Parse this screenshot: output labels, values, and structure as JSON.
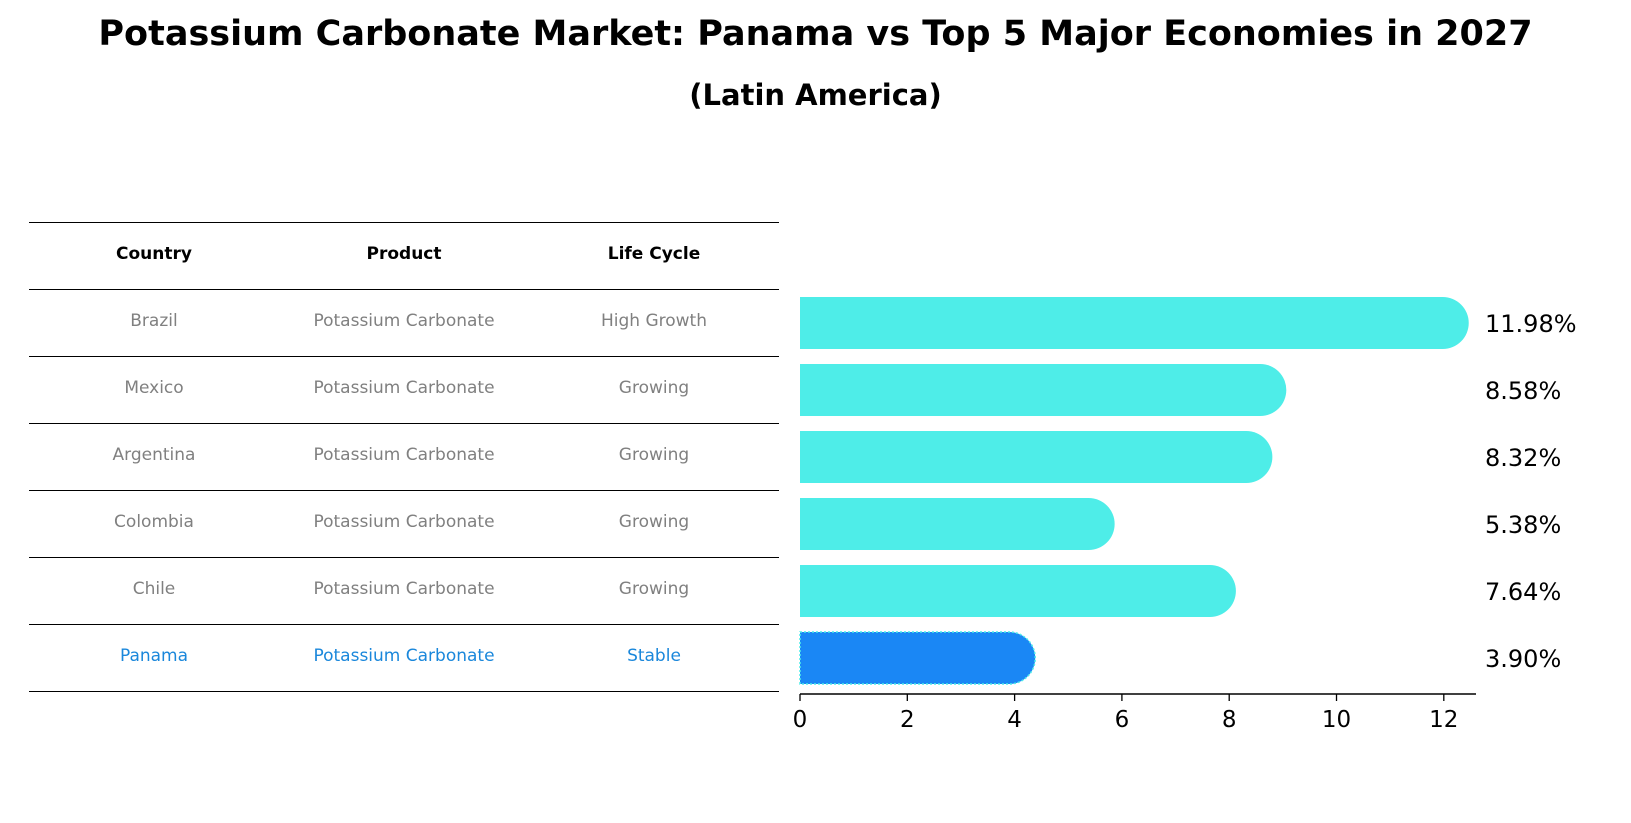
{
  "title": "Potassium Carbonate Market: Panama vs Top 5 Major Economies in 2027",
  "subtitle": "(Latin America)",
  "table": {
    "headers": [
      "Country",
      "Product",
      "Life Cycle"
    ],
    "rows": [
      {
        "country": "Brazil",
        "product": "Potassium Carbonate",
        "life_cycle": "High Growth",
        "highlight": false
      },
      {
        "country": "Mexico",
        "product": "Potassium Carbonate",
        "life_cycle": "Growing",
        "highlight": false
      },
      {
        "country": "Argentina",
        "product": "Potassium Carbonate",
        "life_cycle": "Growing",
        "highlight": false
      },
      {
        "country": "Colombia",
        "product": "Potassium Carbonate",
        "life_cycle": "Growing",
        "highlight": false
      },
      {
        "country": "Chile",
        "product": "Potassium Carbonate",
        "life_cycle": "Growing",
        "highlight": false
      },
      {
        "country": "Panama",
        "product": "Potassium Carbonate",
        "life_cycle": "Stable",
        "highlight": true
      }
    ]
  },
  "colors": {
    "bar": "#4eede8",
    "highlight_bar": "#1a87f5",
    "highlight_text": "#1a87db",
    "row_text": "#808080"
  },
  "chart_data": {
    "type": "bar",
    "orientation": "horizontal",
    "categories": [
      "Brazil",
      "Mexico",
      "Argentina",
      "Colombia",
      "Chile",
      "Panama"
    ],
    "values": [
      11.98,
      8.58,
      8.32,
      5.38,
      7.64,
      3.9
    ],
    "value_labels": [
      "11.98%",
      "8.58%",
      "8.32%",
      "5.38%",
      "7.64%",
      "3.90%"
    ],
    "highlight": "Panama",
    "xlim": [
      0,
      12.6
    ],
    "xticks": [
      0,
      2,
      4,
      6,
      8,
      10,
      12
    ],
    "xlabel": "",
    "ylabel": ""
  }
}
